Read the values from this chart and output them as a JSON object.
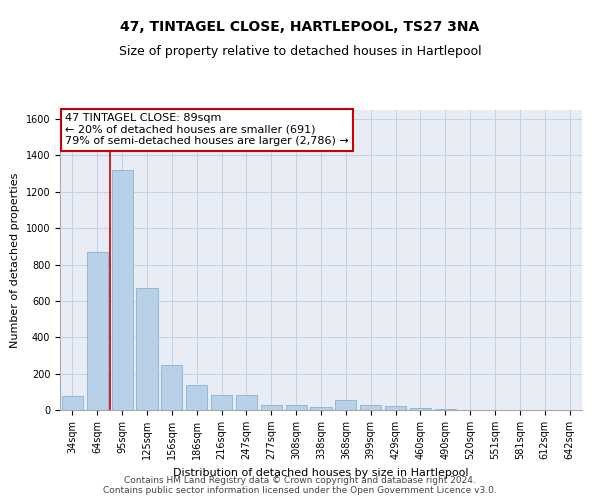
{
  "title": "47, TINTAGEL CLOSE, HARTLEPOOL, TS27 3NA",
  "subtitle": "Size of property relative to detached houses in Hartlepool",
  "xlabel": "Distribution of detached houses by size in Hartlepool",
  "ylabel": "Number of detached properties",
  "footer_line1": "Contains HM Land Registry data © Crown copyright and database right 2024.",
  "footer_line2": "Contains public sector information licensed under the Open Government Licence v3.0.",
  "categories": [
    "34sqm",
    "64sqm",
    "95sqm",
    "125sqm",
    "156sqm",
    "186sqm",
    "216sqm",
    "247sqm",
    "277sqm",
    "308sqm",
    "338sqm",
    "368sqm",
    "399sqm",
    "429sqm",
    "460sqm",
    "490sqm",
    "520sqm",
    "551sqm",
    "581sqm",
    "612sqm",
    "642sqm"
  ],
  "values": [
    75,
    870,
    1320,
    670,
    245,
    140,
    80,
    80,
    30,
    25,
    15,
    55,
    30,
    20,
    10,
    5,
    0,
    0,
    0,
    0,
    0
  ],
  "bar_color": "#b8d0e8",
  "bar_edge_color": "#7ba8cc",
  "red_line_color": "#cc0000",
  "red_line_x": 2,
  "annotation_text": "47 TINTAGEL CLOSE: 89sqm\n← 20% of detached houses are smaller (691)\n79% of semi-detached houses are larger (2,786) →",
  "annotation_box_color": "#ffffff",
  "annotation_box_edge": "#cc0000",
  "ylim": [
    0,
    1650
  ],
  "yticks": [
    0,
    200,
    400,
    600,
    800,
    1000,
    1200,
    1400,
    1600
  ],
  "grid_color": "#c8d0e0",
  "bg_color": "#e8edf5",
  "title_fontsize": 10,
  "subtitle_fontsize": 9,
  "axis_label_fontsize": 8,
  "tick_fontsize": 7,
  "annotation_fontsize": 8,
  "footer_fontsize": 6.5
}
